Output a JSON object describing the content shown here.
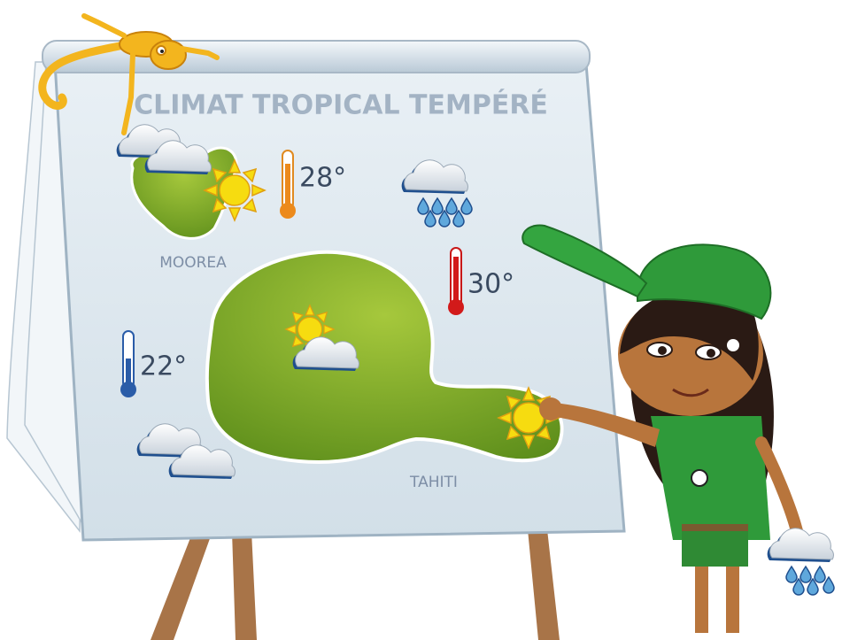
{
  "title": "CLIMAT TROPICAL TEMPÉRÉ",
  "islands": [
    {
      "label": "MOOREA"
    },
    {
      "label": "TAHITI"
    }
  ],
  "temperatures": [
    "28°",
    "30°",
    "22°"
  ]
}
